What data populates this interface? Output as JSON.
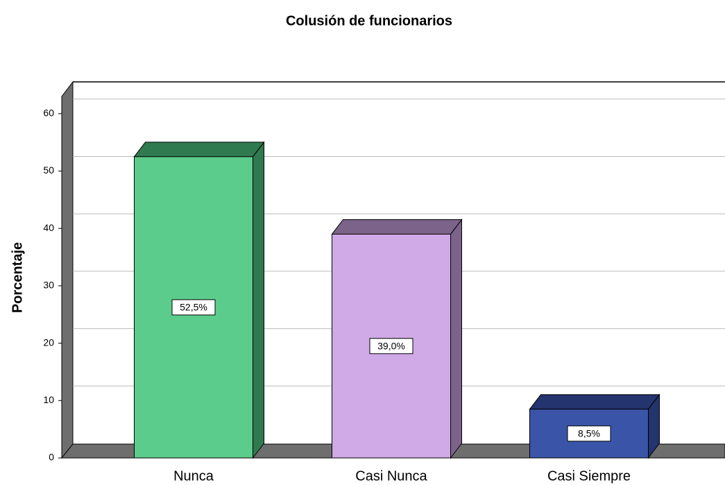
{
  "chart_data": {
    "type": "bar3d",
    "title": "Colusión de funcionarios",
    "y_label": "Porcentaje",
    "categories": [
      "Nunca",
      "Casi Nunca",
      "Casi Siempre"
    ],
    "values": [
      52.5,
      39.0,
      8.5
    ],
    "value_labels": [
      "52,5%",
      "39,0%",
      "8,5%"
    ],
    "colors": [
      "#5ccc8c",
      "#cfaae6",
      "#3a55a8"
    ],
    "side_colors": [
      "#2f7a4e",
      "#7b6389",
      "#23346e"
    ],
    "ylim": [
      0,
      63
    ],
    "yticks": [
      0,
      10,
      20,
      30,
      40,
      50,
      60
    ],
    "grid": true
  }
}
